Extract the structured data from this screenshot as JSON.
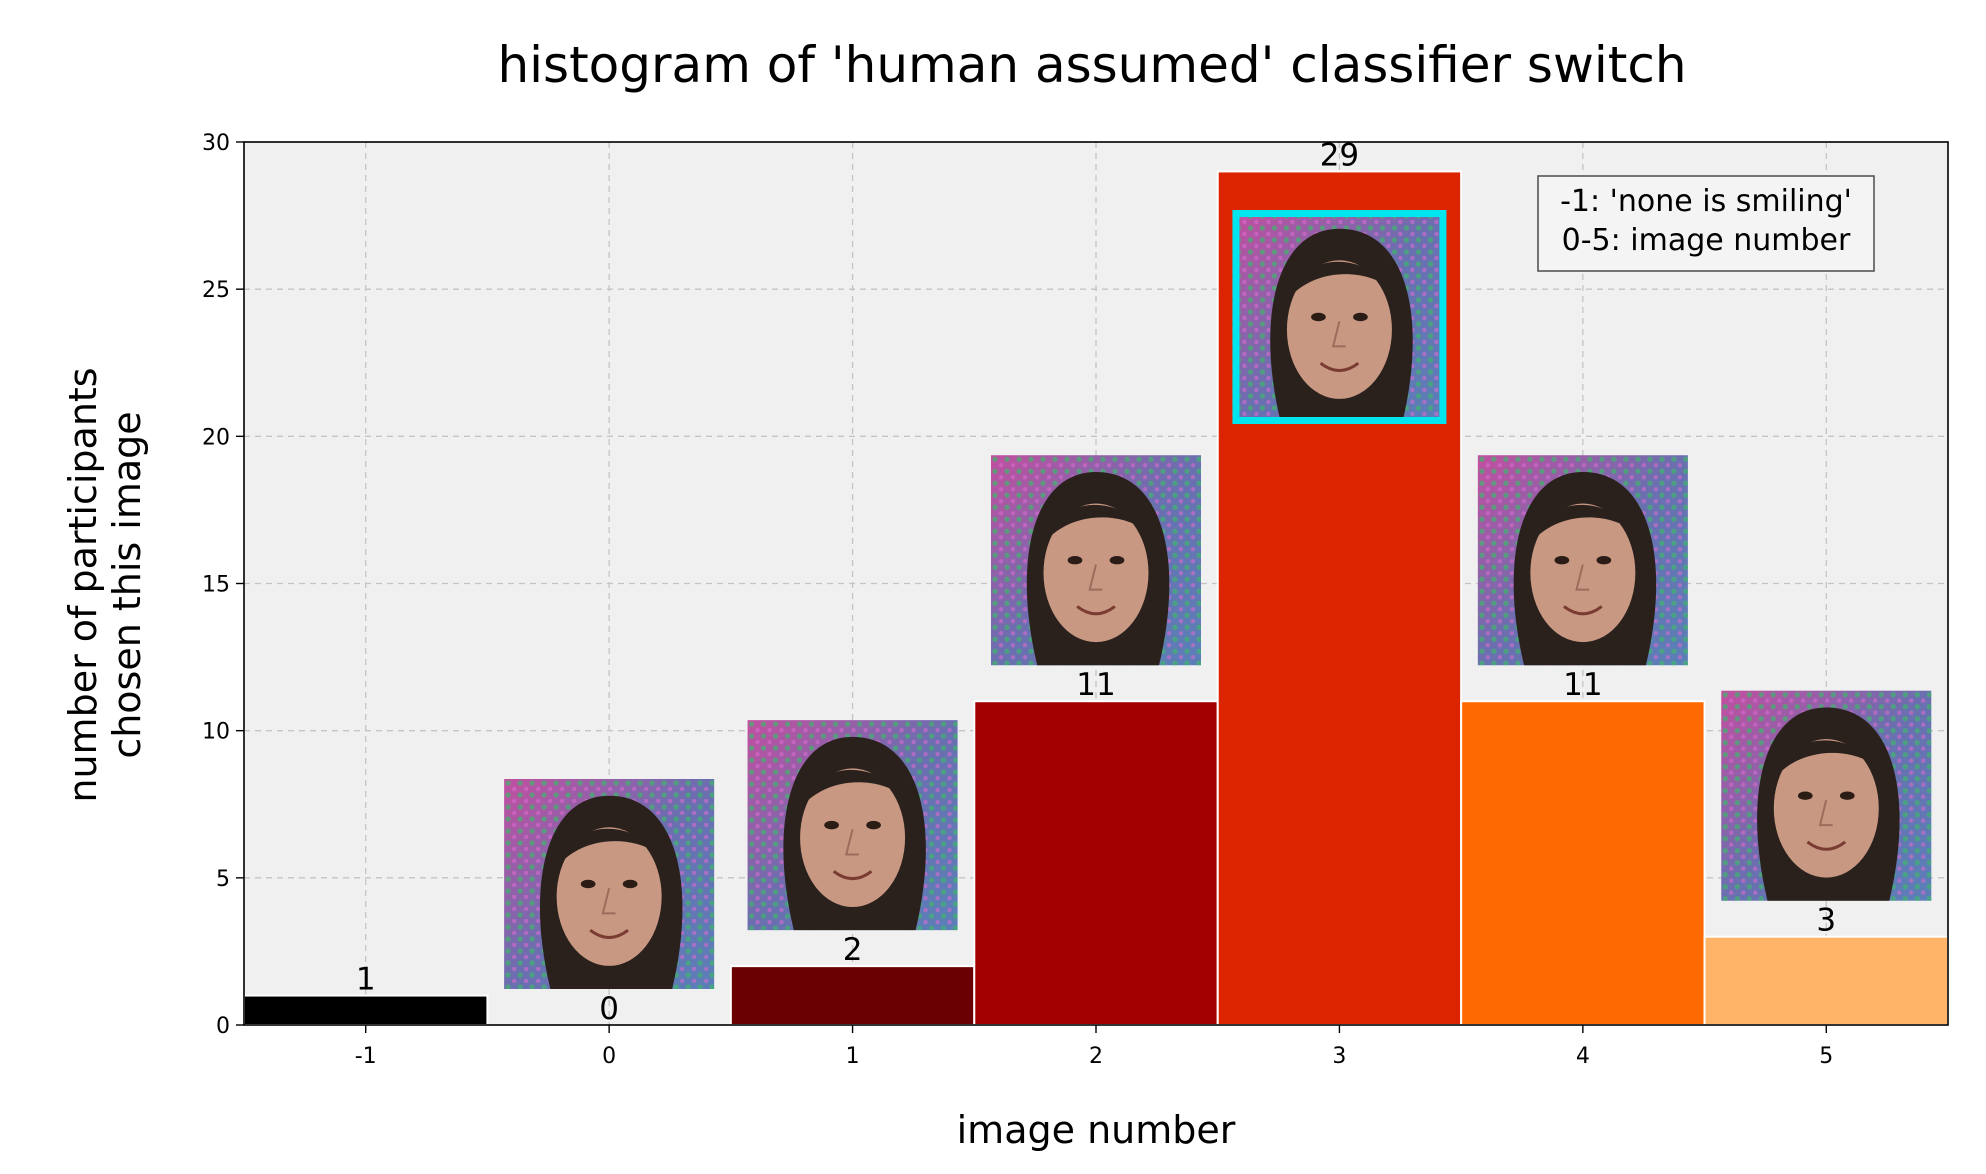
{
  "chart_data": {
    "type": "bar",
    "title": "histogram of 'human assumed' classifier switch",
    "xlabel": "image number",
    "ylabel": [
      "number of participants",
      "chosen this image"
    ],
    "categories": [
      "-1",
      "0",
      "1",
      "2",
      "3",
      "4",
      "5"
    ],
    "values": [
      1,
      0,
      2,
      11,
      29,
      11,
      3
    ],
    "bar_labels": [
      "1",
      "0",
      "2",
      "11",
      "29",
      "11",
      "3"
    ],
    "colors": [
      "#000000",
      "#2a0000",
      "#6b0000",
      "#a30000",
      "#dc2400",
      "#ff6a00",
      "#ffb468"
    ],
    "ylim": [
      0,
      30
    ],
    "yticks": [
      "0",
      "5",
      "10",
      "15",
      "20",
      "25",
      "30"
    ],
    "grid": true,
    "legend": {
      "position": "top-right",
      "lines": [
        "-1: 'none is smiling'",
        "0-5: image number"
      ]
    },
    "highlight_color": "#00e5ee",
    "face_image_bars": [
      "0",
      "1",
      "2",
      "3",
      "4",
      "5"
    ],
    "highlighted_image": "3"
  }
}
